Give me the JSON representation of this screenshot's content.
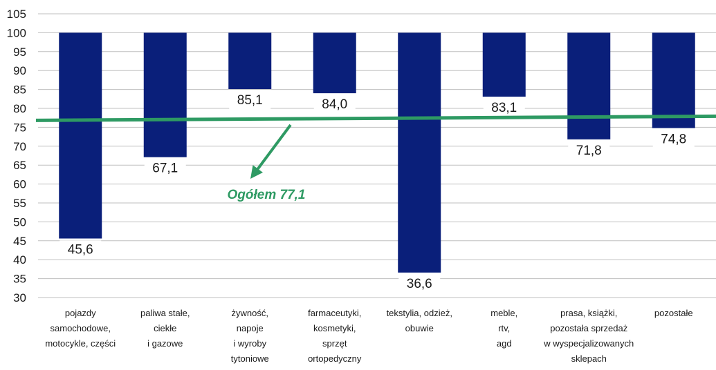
{
  "chart_data": {
    "type": "bar",
    "baseline": 100,
    "categories": [
      [
        "pojazdy",
        "samochodowe,",
        "motocykle, części"
      ],
      [
        "paliwa stałe,",
        "ciekłe",
        "i gazowe"
      ],
      [
        "żywność,",
        "napoje",
        "i wyroby",
        "tytoniowe"
      ],
      [
        "farmaceutyki,",
        "kosmetyki,",
        "sprzęt",
        "ortopedyczny"
      ],
      [
        "tekstylia, odzież,",
        "obuwie"
      ],
      [
        "meble,",
        "rtv,",
        "agd"
      ],
      [
        "prasa, książki,",
        "pozostała sprzedaż",
        "w wyspecjalizowanych",
        "sklepach"
      ],
      [
        "pozostałe"
      ]
    ],
    "values": [
      45.6,
      67.1,
      85.1,
      84.0,
      36.6,
      83.1,
      71.8,
      74.8
    ],
    "value_labels": [
      "45,6",
      "67,1",
      "85,1",
      "84,0",
      "36,6",
      "83,1",
      "71,8",
      "74,8"
    ],
    "ylim": [
      30,
      105
    ],
    "yticks": [
      30,
      35,
      40,
      45,
      50,
      55,
      60,
      65,
      70,
      75,
      80,
      85,
      90,
      95,
      100,
      105
    ],
    "grid": true,
    "reference_line": {
      "value": 77.1,
      "label": "Ogółem 77,1"
    },
    "colors": {
      "bar": "#0a1f7a",
      "reference": "#2e9a63",
      "grid": "#bfbfbf"
    }
  }
}
